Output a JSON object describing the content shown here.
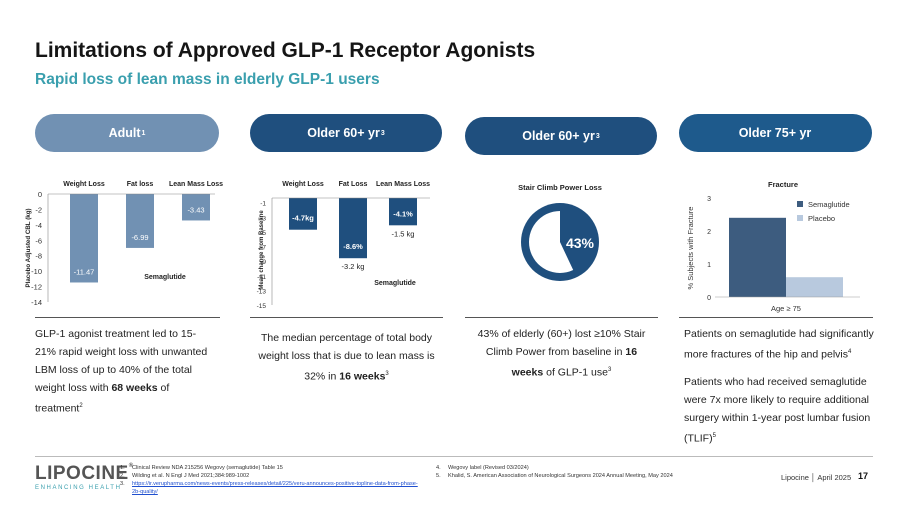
{
  "header": {
    "title": "Limitations of Approved GLP-1 Receptor Agonists",
    "subtitle": "Rapid loss of lean mass in elderly GLP-1 users"
  },
  "columns": [
    {
      "label": "Adult",
      "sup": "1",
      "color": "#7191b3"
    },
    {
      "label": "Older 60+ yr",
      "sup": "3",
      "color": "#1f4f7e"
    },
    {
      "label": "Older 60+ yr",
      "sup": "3",
      "color": "#1f4f7e"
    },
    {
      "label": "Older 75+ yr",
      "sup": "",
      "color": "#1e5a8c"
    }
  ],
  "chart_data": [
    {
      "type": "bar",
      "categories": [
        "Weight Loss",
        "Fat loss",
        "Lean Mass Loss"
      ],
      "values": [
        -11.47,
        -6.99,
        -3.43
      ],
      "value_labels": [
        "-11.47",
        "-6.99",
        "-3.43"
      ],
      "series_label": "Semaglutide",
      "ylabel": "Placebo Adjusted CBL (kg)",
      "ylim": [
        -14,
        0
      ],
      "ticks": [
        "0",
        "-2",
        "-4",
        "-6",
        "-8",
        "-10",
        "-12",
        "-14"
      ],
      "color": "#7191b3"
    },
    {
      "type": "bar",
      "categories": [
        "Weight Loss",
        "Fat Loss",
        "Lean Mass Loss"
      ],
      "values": [
        -4.7,
        -8.6,
        -4.1
      ],
      "value_labels": [
        "-4.7kg",
        "-8.6%",
        "-4.1%"
      ],
      "below_labels": [
        "",
        "-3.2 kg",
        "-1.5 kg"
      ],
      "series_label": "Semaglutide",
      "ylabel": "Mean change from Baseline",
      "ylim": [
        -15,
        0
      ],
      "ticks": [
        "-1",
        "-3",
        "-5",
        "-7",
        "-9",
        "-11",
        "-13",
        "-15"
      ],
      "color": "#1f4f7e"
    },
    {
      "type": "pie",
      "title": "Stair Climb Power Loss",
      "slices": [
        {
          "label": "43%",
          "value": 43
        },
        {
          "label": "",
          "value": 57
        }
      ],
      "color": "#1f4f7e"
    },
    {
      "type": "bar",
      "title": "Fracture",
      "categories": [
        "Age ≥ 75"
      ],
      "series": [
        {
          "name": "Semaglutide",
          "values": [
            2.4
          ],
          "color": "#3d5c7f"
        },
        {
          "name": "Placebo",
          "values": [
            0.6
          ],
          "color": "#b8c9de"
        }
      ],
      "ylabel": "% Subjects with Fracture",
      "ylim": [
        0,
        3
      ],
      "ticks": [
        "0",
        "1",
        "2",
        "3"
      ]
    }
  ],
  "descriptions": {
    "d1_a": "GLP-1 agonist treatment led to 15-21% rapid weight loss with unwanted LBM loss of up to 40% of the total weight loss with ",
    "d1_b": "68 weeks",
    "d1_c": " of treatment",
    "d1_sup": "2",
    "d2_a": "The median percentage of total body weight loss that is due to lean mass is 32% in ",
    "d2_b": "16 weeks",
    "d2_sup": "3",
    "d3_a": "43% of elderly (60+) lost ≥10% Stair Climb Power from baseline in ",
    "d3_b": "16 weeks",
    "d3_c": " of GLP-1 use",
    "d3_sup": "3",
    "d4_p1": "Patients on semaglutide had significantly more fractures of the hip and pelvis",
    "d4_p1_sup": "4",
    "d4_p2": "Patients who had received semaglutide were 7x more likely to require additional surgery within 1-year post lumbar fusion (TLIF)",
    "d4_p2_sup": "5"
  },
  "footer": {
    "logo_word": "LIPOCINE",
    "logo_reg": "®",
    "logo_tag": "ENHANCING HEALTH",
    "refs": [
      {
        "num": "1.",
        "text": "Clinical Review NDA 215256 Wegovy (semaglutide) Table 15"
      },
      {
        "num": "2.",
        "text": "Wilding et al. N Engl J Med 2021;384:989-1002"
      },
      {
        "num": "3.",
        "text": "https://ir.verupharma.com/news-events/press-releases/detail/225/veru-announces-positive-topline-data-from-phase-2b-quality/"
      },
      {
        "num": "4.",
        "text": "Wegovy label (Revised 03/2024)"
      },
      {
        "num": "5.",
        "text": "Khalid, S. American Association of Neurological Surgeons 2024 Annual Meeting, May 2024"
      }
    ],
    "brand": "Lipocine │ April 2025",
    "page_number": "17"
  }
}
